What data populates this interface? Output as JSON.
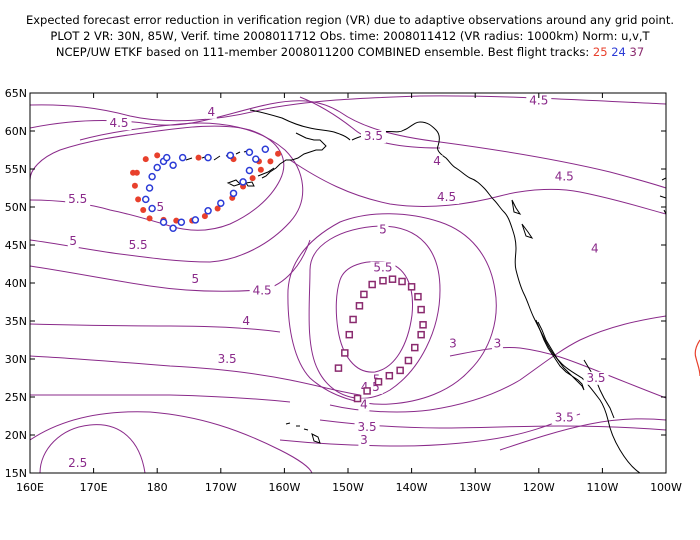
{
  "title": {
    "line1": "Expected forecast error reduction in verification region (VR) due to adaptive observations around any grid point.",
    "line2": "PLOT 2 VR: 30N, 85W, Verif. time 2008011712 Obs. time: 2008011412 (VR radius: 1000km) Norm: u,v,T",
    "line3_prefix": "NCEP/UW ETKF based on 111-member 2008011200 COMBINED ensemble.  Best flight tracks:",
    "track_labels": [
      {
        "text": "25",
        "color": "#e8402c"
      },
      {
        "text": "24",
        "color": "#2b3bd6"
      },
      {
        "text": "37",
        "color": "#8a2a6e"
      }
    ]
  },
  "map": {
    "lon_range": [
      160,
      260
    ],
    "lat_range": [
      15,
      65
    ],
    "x_ticks": [
      "160E",
      "170E",
      "180",
      "170W",
      "160W",
      "150W",
      "140W",
      "130W",
      "120W",
      "110W",
      "100W"
    ],
    "y_ticks": [
      "15N",
      "20N",
      "25N",
      "30N",
      "35N",
      "40N",
      "45N",
      "50N",
      "55N",
      "60N",
      "65N"
    ],
    "contour_color": "#8a2a8a",
    "coast_color": "#000000",
    "contour_labels": [
      {
        "text": "4.5",
        "lon": 174.0,
        "lat": 60.5
      },
      {
        "text": "4",
        "lon": 188.5,
        "lat": 62.0
      },
      {
        "text": "3.5",
        "lon": 214.0,
        "lat": 58.8
      },
      {
        "text": "4",
        "lon": 224.0,
        "lat": 55.5
      },
      {
        "text": "4.5",
        "lon": 225.5,
        "lat": 50.8
      },
      {
        "text": "4.5",
        "lon": 240.0,
        "lat": 63.5
      },
      {
        "text": "4.5",
        "lon": 244.0,
        "lat": 53.5
      },
      {
        "text": "4",
        "lon": 248.8,
        "lat": 44.0
      },
      {
        "text": "5.5",
        "lon": 167.5,
        "lat": 50.5
      },
      {
        "text": "5",
        "lon": 166.8,
        "lat": 45.0
      },
      {
        "text": "5.5",
        "lon": 177.0,
        "lat": 44.5
      },
      {
        "text": "5",
        "lon": 180.5,
        "lat": 49.5
      },
      {
        "text": "5",
        "lon": 186.0,
        "lat": 40.0
      },
      {
        "text": "4.5",
        "lon": 196.5,
        "lat": 38.5
      },
      {
        "text": "4",
        "lon": 194.0,
        "lat": 34.5
      },
      {
        "text": "3.5",
        "lon": 191.0,
        "lat": 29.5
      },
      {
        "text": "5",
        "lon": 215.5,
        "lat": 46.5
      },
      {
        "text": "5.5",
        "lon": 215.5,
        "lat": 41.5
      },
      {
        "text": "5",
        "lon": 214.5,
        "lat": 26.8
      },
      {
        "text": "4.5",
        "lon": 213.5,
        "lat": 25.8
      },
      {
        "text": "4",
        "lon": 212.5,
        "lat": 23.5
      },
      {
        "text": "3.5",
        "lon": 213.0,
        "lat": 20.5
      },
      {
        "text": "3",
        "lon": 212.5,
        "lat": 18.8
      },
      {
        "text": "3",
        "lon": 226.5,
        "lat": 31.5
      },
      {
        "text": "3",
        "lon": 233.5,
        "lat": 31.5
      },
      {
        "text": "3.5",
        "lon": 249.0,
        "lat": 27.0
      },
      {
        "text": "3.5",
        "lon": 244.0,
        "lat": 21.8
      },
      {
        "text": "2.5",
        "lon": 167.5,
        "lat": 15.8
      }
    ],
    "tracks": [
      {
        "name": "25",
        "color": "#e8402c",
        "marker": "dot",
        "points": [
          [
            178.2,
            56.3
          ],
          [
            176.2,
            54.5
          ],
          [
            176.5,
            52.8
          ],
          [
            177.0,
            51.0
          ],
          [
            177.8,
            49.6
          ],
          [
            178.8,
            48.5
          ],
          [
            181.0,
            48.3
          ],
          [
            183.0,
            48.2
          ],
          [
            185.5,
            48.2
          ],
          [
            187.5,
            48.8
          ],
          [
            189.5,
            49.8
          ],
          [
            191.8,
            51.2
          ],
          [
            193.5,
            52.7
          ],
          [
            195.0,
            53.8
          ],
          [
            196.3,
            54.9
          ],
          [
            197.8,
            56.0
          ],
          [
            199.0,
            57.0
          ],
          [
            196.0,
            56.0
          ],
          [
            192.0,
            56.3
          ],
          [
            186.5,
            56.5
          ],
          [
            180.0,
            56.8
          ],
          [
            176.8,
            54.5
          ]
        ]
      },
      {
        "name": "24",
        "color": "#2b3bd6",
        "marker": "ring",
        "points": [
          [
            181.0,
            56.0
          ],
          [
            180.0,
            55.2
          ],
          [
            179.2,
            54.0
          ],
          [
            178.8,
            52.5
          ],
          [
            178.2,
            51.0
          ],
          [
            179.2,
            49.8
          ],
          [
            181.0,
            48.0
          ],
          [
            182.5,
            47.2
          ],
          [
            183.8,
            48.0
          ],
          [
            186.0,
            48.3
          ],
          [
            188.0,
            49.5
          ],
          [
            190.0,
            50.5
          ],
          [
            192.0,
            51.8
          ],
          [
            193.5,
            53.3
          ],
          [
            194.5,
            54.8
          ],
          [
            195.5,
            56.3
          ],
          [
            197.0,
            57.6
          ],
          [
            194.5,
            57.2
          ],
          [
            191.5,
            56.8
          ],
          [
            188.0,
            56.5
          ],
          [
            184.0,
            56.5
          ],
          [
            182.5,
            55.5
          ],
          [
            181.5,
            56.5
          ]
        ]
      },
      {
        "name": "37",
        "color": "#8a2a6e",
        "marker": "square",
        "points": [
          [
            208.5,
            28.8
          ],
          [
            209.5,
            30.8
          ],
          [
            210.2,
            33.2
          ],
          [
            210.8,
            35.2
          ],
          [
            211.8,
            37.0
          ],
          [
            212.5,
            38.5
          ],
          [
            213.8,
            39.8
          ],
          [
            215.5,
            40.3
          ],
          [
            217.0,
            40.5
          ],
          [
            218.5,
            40.2
          ],
          [
            220.0,
            39.5
          ],
          [
            221.0,
            38.2
          ],
          [
            221.5,
            36.5
          ],
          [
            221.8,
            34.5
          ],
          [
            221.5,
            33.2
          ],
          [
            220.5,
            31.5
          ],
          [
            219.5,
            29.8
          ],
          [
            218.2,
            28.5
          ],
          [
            216.5,
            27.8
          ],
          [
            214.8,
            27.0
          ],
          [
            213.0,
            25.8
          ],
          [
            211.5,
            24.8
          ]
        ]
      }
    ]
  }
}
